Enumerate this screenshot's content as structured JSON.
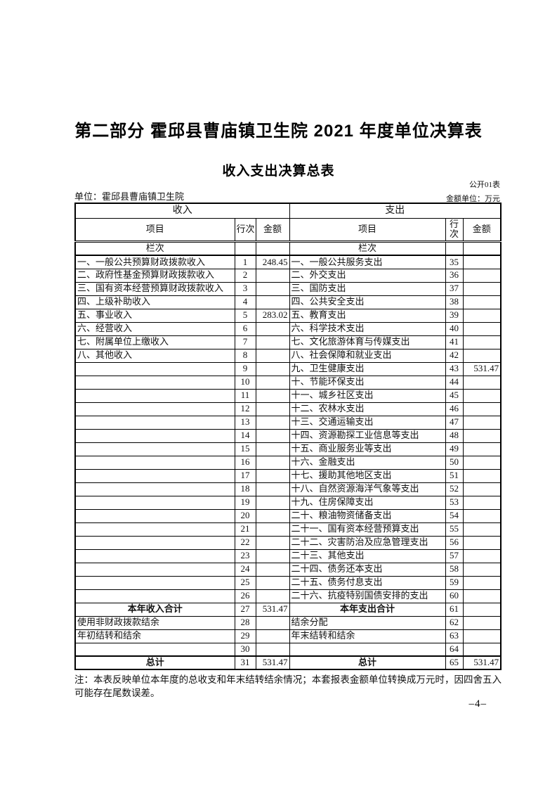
{
  "page": {
    "title": "第二部分 霍邱县曹庙镇卫生院 2021 年度单位决算表",
    "subtitle": "收入支出决算总表",
    "table_code": "公开01表",
    "unit_label": "单位：霍邱县曹庙镇卫生院",
    "amount_unit_label": "金额单位：万元",
    "note_line": "注：本表反映单位本年度的总收支和年末结转结余情况；本套报表金额单位转换成万元时，因四舍五入可能存在尾数误差。",
    "page_number": "–4–"
  },
  "table": {
    "income_section_label": "收入",
    "expense_section_label": "支出",
    "columns": {
      "item": "项目",
      "row_no": "行次",
      "amount": "金额"
    },
    "lanci_label": "栏次",
    "rows": [
      {
        "cells": [
          "一、一般公共预算财政拨款收入",
          "1",
          "248.45",
          "一、一般公共服务支出",
          "35",
          ""
        ],
        "total": false
      },
      {
        "cells": [
          "二、政府性基金预算财政拨款收入",
          "2",
          "",
          "二、外交支出",
          "36",
          ""
        ],
        "total": false
      },
      {
        "cells": [
          "三、国有资本经营预算财政拨款收入",
          "3",
          "",
          "三、国防支出",
          "37",
          ""
        ],
        "total": false
      },
      {
        "cells": [
          "四、上级补助收入",
          "4",
          "",
          "四、公共安全支出",
          "38",
          ""
        ],
        "total": false
      },
      {
        "cells": [
          "五、事业收入",
          "5",
          "283.02",
          "五、教育支出",
          "39",
          ""
        ],
        "total": false
      },
      {
        "cells": [
          "六、经营收入",
          "6",
          "",
          "六、科学技术支出",
          "40",
          ""
        ],
        "total": false
      },
      {
        "cells": [
          "七、附属单位上缴收入",
          "7",
          "",
          "七、文化旅游体育与传媒支出",
          "41",
          ""
        ],
        "total": false
      },
      {
        "cells": [
          "八、其他收入",
          "8",
          "",
          "八、社会保障和就业支出",
          "42",
          ""
        ],
        "total": false
      },
      {
        "cells": [
          "",
          "9",
          "",
          "九、卫生健康支出",
          "43",
          "531.47"
        ],
        "total": false
      },
      {
        "cells": [
          "",
          "10",
          "",
          "十、节能环保支出",
          "44",
          ""
        ],
        "total": false
      },
      {
        "cells": [
          "",
          "11",
          "",
          "十一、城乡社区支出",
          "45",
          ""
        ],
        "total": false
      },
      {
        "cells": [
          "",
          "12",
          "",
          "十二、农林水支出",
          "46",
          ""
        ],
        "total": false
      },
      {
        "cells": [
          "",
          "13",
          "",
          "十三、交通运输支出",
          "47",
          ""
        ],
        "total": false
      },
      {
        "cells": [
          "",
          "14",
          "",
          "十四、资源勘探工业信息等支出",
          "48",
          ""
        ],
        "total": false
      },
      {
        "cells": [
          "",
          "15",
          "",
          "十五、商业服务业等支出",
          "49",
          ""
        ],
        "total": false
      },
      {
        "cells": [
          "",
          "16",
          "",
          "十六、金融支出",
          "50",
          ""
        ],
        "total": false
      },
      {
        "cells": [
          "",
          "17",
          "",
          "十七、援助其他地区支出",
          "51",
          ""
        ],
        "total": false
      },
      {
        "cells": [
          "",
          "18",
          "",
          "十八、自然资源海洋气象等支出",
          "52",
          ""
        ],
        "total": false
      },
      {
        "cells": [
          "",
          "19",
          "",
          "十九、住房保障支出",
          "53",
          ""
        ],
        "total": false
      },
      {
        "cells": [
          "",
          "20",
          "",
          "二十、粮油物资储备支出",
          "54",
          ""
        ],
        "total": false
      },
      {
        "cells": [
          "",
          "21",
          "",
          "二十一、国有资本经营预算支出",
          "55",
          ""
        ],
        "total": false
      },
      {
        "cells": [
          "",
          "22",
          "",
          "二十二、灾害防治及应急管理支出",
          "56",
          ""
        ],
        "total": false
      },
      {
        "cells": [
          "",
          "23",
          "",
          "二十三、其他支出",
          "57",
          ""
        ],
        "total": false
      },
      {
        "cells": [
          "",
          "24",
          "",
          "二十四、债务还本支出",
          "58",
          ""
        ],
        "total": false
      },
      {
        "cells": [
          "",
          "25",
          "",
          "二十五、债务付息支出",
          "59",
          ""
        ],
        "total": false
      },
      {
        "cells": [
          "",
          "26",
          "",
          "二十六、抗疫特别国债安排的支出",
          "60",
          ""
        ],
        "total": false
      },
      {
        "cells": [
          "本年收入合计",
          "27",
          "531.47",
          "本年支出合计",
          "61",
          ""
        ],
        "total": true
      },
      {
        "cells": [
          "使用非财政拨款结余",
          "28",
          "",
          "结余分配",
          "62",
          ""
        ],
        "total": false
      },
      {
        "cells": [
          "年初结转和结余",
          "29",
          "",
          "年末结转和结余",
          "63",
          ""
        ],
        "total": false
      },
      {
        "cells": [
          "",
          "30",
          "",
          "",
          "64",
          ""
        ],
        "total": false
      },
      {
        "cells": [
          "总计",
          "31",
          "531.47",
          "总计",
          "65",
          "531.47"
        ],
        "total": true
      }
    ]
  }
}
